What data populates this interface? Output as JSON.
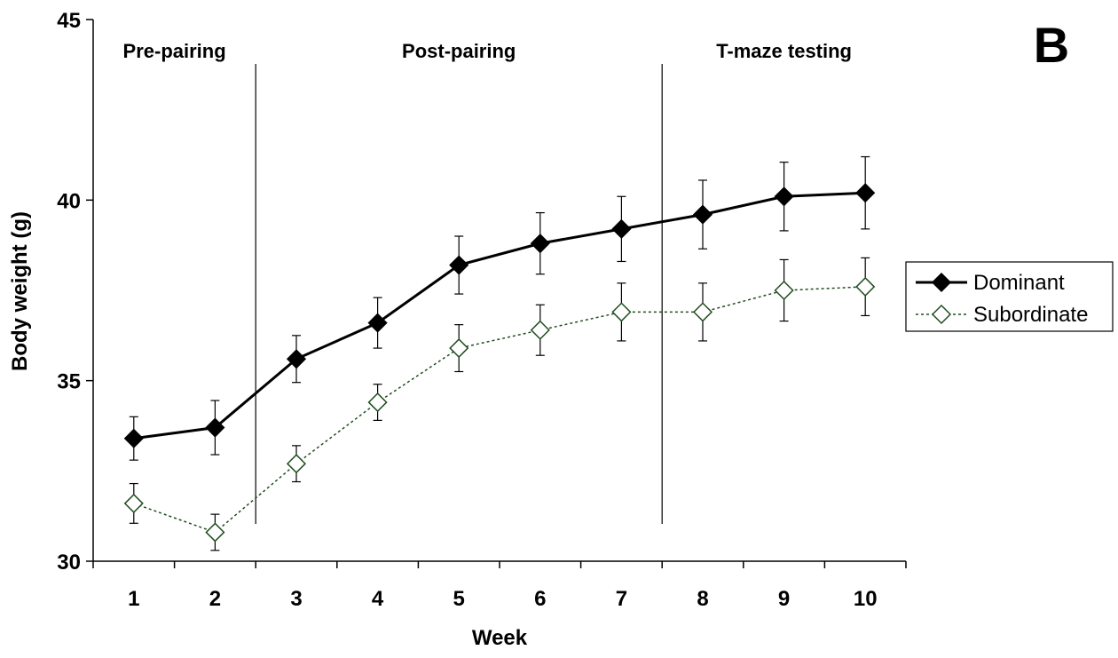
{
  "chart_data": {
    "type": "line",
    "panel_label": "B",
    "xlabel": "Week",
    "ylabel": "Body weight (g)",
    "ylim": [
      30,
      45
    ],
    "yticks": [
      30,
      35,
      40,
      45
    ],
    "categories": [
      "1",
      "2",
      "3",
      "4",
      "5",
      "6",
      "7",
      "8",
      "9",
      "10"
    ],
    "x": [
      1,
      2,
      3,
      4,
      5,
      6,
      7,
      8,
      9,
      10
    ],
    "grid": false,
    "legend_position": "right",
    "phases": [
      {
        "label": "Pre-pairing",
        "start": 0.5,
        "end": 2.5
      },
      {
        "label": "Post-pairing",
        "start": 2.5,
        "end": 7.5
      },
      {
        "label": "T-maze testing",
        "start": 7.5,
        "end": 10.5
      }
    ],
    "phase_dividers": [
      2.5,
      7.5
    ],
    "series": [
      {
        "name": "Dominant",
        "color": "#000000",
        "marker": "filled-diamond",
        "line": "solid",
        "values": [
          33.4,
          33.7,
          35.6,
          36.6,
          38.2,
          38.8,
          39.2,
          39.6,
          40.1,
          40.2
        ],
        "errors": [
          0.6,
          0.75,
          0.65,
          0.7,
          0.8,
          0.85,
          0.9,
          0.95,
          0.95,
          1.0
        ]
      },
      {
        "name": "Subordinate",
        "color": "#1f4d1f",
        "marker": "open-diamond",
        "line": "dotted",
        "values": [
          31.6,
          30.8,
          32.7,
          34.4,
          35.9,
          36.4,
          36.9,
          36.9,
          37.5,
          37.6
        ],
        "errors": [
          0.55,
          0.5,
          0.5,
          0.5,
          0.65,
          0.7,
          0.8,
          0.8,
          0.85,
          0.8
        ]
      }
    ]
  }
}
